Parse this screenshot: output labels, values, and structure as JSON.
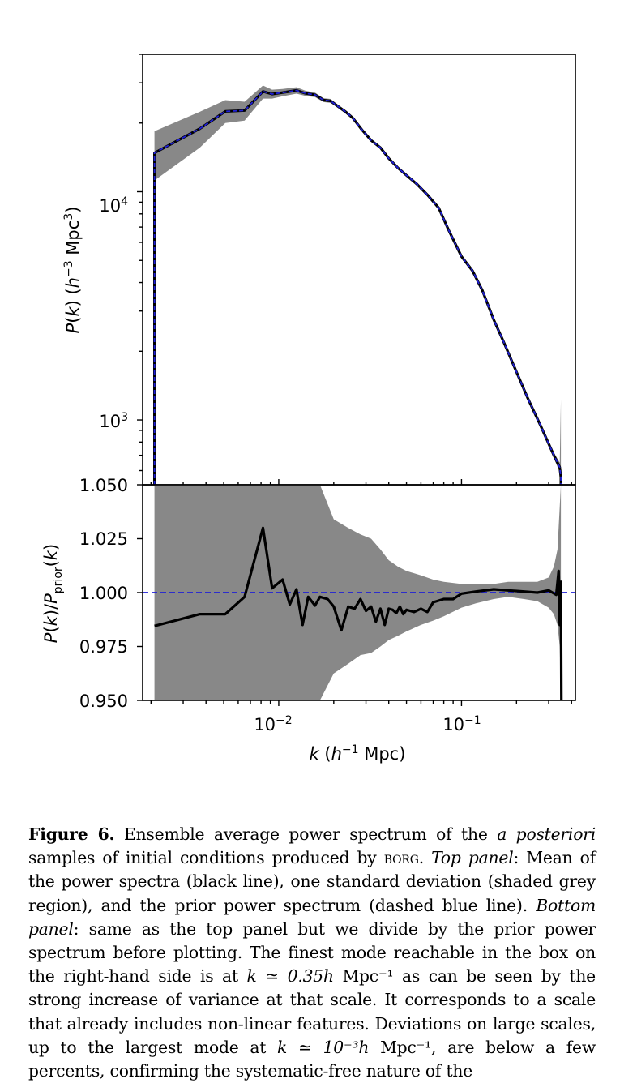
{
  "chart_data": [
    {
      "type": "line",
      "panel": "top",
      "ylabel": "P(k) (h^-3 Mpc^3)",
      "yscale": "log",
      "xscale": "log",
      "xlim": [
        0.0018,
        0.42
      ],
      "ylim": [
        520,
        40000
      ],
      "ytick_labels": [
        "10^3",
        "10^4"
      ],
      "series": [
        {
          "role": "mean",
          "color": "#000000",
          "x": [
            0.00209,
            0.00209,
            0.0037,
            0.0051,
            0.0065,
            0.0082,
            0.0092,
            0.0105,
            0.0125,
            0.014,
            0.0158,
            0.0176,
            0.0192,
            0.0212,
            0.0232,
            0.0255,
            0.0285,
            0.032,
            0.036,
            0.04,
            0.045,
            0.05,
            0.057,
            0.065,
            0.075,
            0.085,
            0.1,
            0.115,
            0.13,
            0.15,
            0.17,
            0.195,
            0.23,
            0.27,
            0.32,
            0.345,
            0.35,
            0.35
          ],
          "y": [
            520,
            14800,
            18900,
            22500,
            22700,
            27500,
            26800,
            27200,
            27800,
            27000,
            26600,
            25200,
            25000,
            23600,
            22400,
            21000,
            18700,
            16800,
            15600,
            14000,
            12700,
            11800,
            10800,
            9700,
            8500,
            6800,
            5200,
            4500,
            3700,
            2750,
            2200,
            1700,
            1250,
            950,
            700,
            620,
            560,
            520
          ]
        },
        {
          "role": "prior",
          "color": "#1f1fd6",
          "dashed": true,
          "x": [
            0.00209,
            0.00209,
            0.0037,
            0.0051,
            0.0065,
            0.0082,
            0.0092,
            0.0105,
            0.0125,
            0.014,
            0.0158,
            0.0176,
            0.0192,
            0.0212,
            0.0232,
            0.0255,
            0.0285,
            0.032,
            0.036,
            0.04,
            0.045,
            0.05,
            0.057,
            0.065,
            0.075,
            0.085,
            0.1,
            0.115,
            0.13,
            0.15,
            0.17,
            0.195,
            0.23,
            0.27,
            0.32,
            0.345,
            0.35,
            0.35
          ],
          "y": [
            520,
            14800,
            18900,
            22500,
            22700,
            27500,
            26800,
            27200,
            27800,
            27000,
            26600,
            25200,
            25000,
            23600,
            22400,
            21000,
            18700,
            16800,
            15600,
            14000,
            12700,
            11800,
            10800,
            9700,
            8500,
            6800,
            5200,
            4500,
            3700,
            2750,
            2200,
            1700,
            1250,
            950,
            700,
            620,
            560,
            520
          ]
        }
      ],
      "band": {
        "role": "one standard deviation",
        "color": "#888888",
        "x": [
          0.00209,
          0.0037,
          0.0051,
          0.0065,
          0.0082,
          0.0092,
          0.0105,
          0.0125,
          0.014,
          0.0158,
          0.0176,
          0.0192,
          0.0212,
          0.0232,
          0.0255,
          0.0285,
          0.032,
          0.036,
          0.04,
          0.045,
          0.05,
          0.057,
          0.065,
          0.075,
          0.085,
          0.1,
          0.115,
          0.13,
          0.15,
          0.17,
          0.195,
          0.23,
          0.27,
          0.32,
          0.345,
          0.35
        ],
        "lower": [
          11200,
          15600,
          20000,
          20500,
          25600,
          25600,
          26200,
          26900,
          26300,
          26000,
          24700,
          24500,
          23200,
          22000,
          20700,
          18400,
          16600,
          15400,
          13800,
          12600,
          11700,
          10700,
          9600,
          8400,
          6700,
          5150,
          4450,
          3650,
          2720,
          2180,
          1680,
          1230,
          930,
          680,
          590,
          520
        ],
        "upper": [
          18400,
          22400,
          25200,
          24800,
          29200,
          28000,
          28200,
          28700,
          27700,
          27200,
          25700,
          25500,
          24000,
          22800,
          21300,
          19000,
          17000,
          15800,
          14200,
          12800,
          11900,
          10900,
          9800,
          8600,
          6900,
          5250,
          4550,
          3750,
          2780,
          2220,
          1720,
          1270,
          970,
          720,
          650,
          1230
        ]
      }
    },
    {
      "type": "line",
      "panel": "bottom",
      "xlabel": "k (h^-1 Mpc)",
      "ylabel": "P(k)/P_prior(k)",
      "xscale": "log",
      "xlim": [
        0.0018,
        0.42
      ],
      "ylim": [
        0.95,
        1.05
      ],
      "ytick_labels": [
        "0.950",
        "0.975",
        "1.000",
        "1.025",
        "1.050"
      ],
      "xtick_labels": [
        "10^-2",
        "10^-1"
      ],
      "reference_line": {
        "y": 1.0,
        "color": "#1f1fd6",
        "dashed": true
      },
      "series": [
        {
          "role": "ratio",
          "color": "#000000",
          "x": [
            0.00209,
            0.0037,
            0.0051,
            0.0065,
            0.0082,
            0.0092,
            0.0105,
            0.0115,
            0.0125,
            0.0135,
            0.0145,
            0.0158,
            0.0168,
            0.0185,
            0.02,
            0.022,
            0.024,
            0.026,
            0.028,
            0.03,
            0.032,
            0.034,
            0.036,
            0.038,
            0.04,
            0.042,
            0.044,
            0.046,
            0.048,
            0.05,
            0.055,
            0.06,
            0.065,
            0.07,
            0.08,
            0.09,
            0.1,
            0.12,
            0.15,
            0.18,
            0.22,
            0.26,
            0.3,
            0.33,
            0.34,
            0.345,
            0.35,
            0.352
          ],
          "y": [
            0.9845,
            0.99,
            0.99,
            0.998,
            1.03,
            1.002,
            1.006,
            0.9945,
            1.0015,
            0.985,
            0.998,
            0.994,
            0.998,
            0.997,
            0.9935,
            0.9825,
            0.9935,
            0.9925,
            0.997,
            0.9915,
            0.9935,
            0.9865,
            0.9925,
            0.985,
            0.9925,
            0.992,
            0.9905,
            0.9935,
            0.99,
            0.992,
            0.991,
            0.9925,
            0.991,
            0.9955,
            0.997,
            0.997,
            0.9995,
            1.0005,
            1.0015,
            1.001,
            1.0005,
            1.0,
            1.001,
            0.999,
            1.01,
            0.985,
            1.005,
            0.95
          ]
        }
      ],
      "band": {
        "role": "one standard deviation",
        "color": "#888888",
        "x": [
          0.00209,
          0.0082,
          0.0125,
          0.0145,
          0.0168,
          0.02,
          0.024,
          0.028,
          0.032,
          0.036,
          0.04,
          0.045,
          0.05,
          0.06,
          0.07,
          0.08,
          0.1,
          0.12,
          0.15,
          0.18,
          0.22,
          0.26,
          0.3,
          0.32,
          0.335,
          0.345,
          0.35
        ],
        "lower": [
          0.95,
          0.95,
          0.95,
          0.95,
          0.95,
          0.9625,
          0.967,
          0.971,
          0.972,
          0.975,
          0.978,
          0.98,
          0.982,
          0.985,
          0.987,
          0.989,
          0.993,
          0.995,
          0.997,
          0.998,
          0.997,
          0.996,
          0.993,
          0.99,
          0.985,
          0.975,
          0.95
        ],
        "upper": [
          1.05,
          1.05,
          1.05,
          1.05,
          1.05,
          1.034,
          1.03,
          1.027,
          1.025,
          1.02,
          1.015,
          1.012,
          1.01,
          1.008,
          1.006,
          1.005,
          1.004,
          1.004,
          1.004,
          1.005,
          1.005,
          1.005,
          1.007,
          1.012,
          1.02,
          1.04,
          1.05
        ]
      }
    }
  ],
  "caption": {
    "label": "Figure 6.",
    "t1": " Ensemble average power spectrum of the ",
    "i1": "a posteriori",
    "t2": " samples of initial conditions produced by ",
    "sc1": "borg",
    "t3": ". ",
    "i2": "Top panel",
    "t4": ": Mean of the power spectra (black line), one standard deviation (shaded grey region), and the prior power spectrum (dashed blue line). ",
    "i3": "Bottom panel",
    "t5": ": same as the top panel but we divide by the prior power spectrum before plotting. The finest mode reachable in the box on the right-hand side is at ",
    "m1": "k ≃ 0.35h",
    "t6": " Mpc⁻¹ as can be seen by the strong increase of variance at that scale. It corresponds to a scale that already includes non-linear features. Deviations on large scales, up to the largest mode at ",
    "m2": "k ≃ 10⁻³h",
    "t7": " Mpc⁻¹, are below a few percents, confirming the systematic-free nature of the"
  }
}
